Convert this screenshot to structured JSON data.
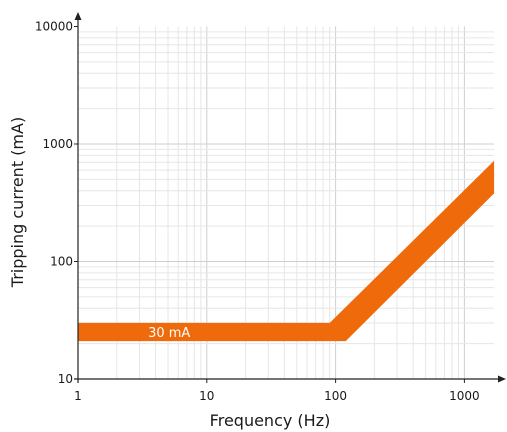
{
  "chart_data": {
    "type": "area",
    "x_scale": "log",
    "y_scale": "log",
    "xlim": [
      1,
      1700
    ],
    "ylim": [
      10,
      10000
    ],
    "xlabel": "Frequency (Hz)",
    "ylabel": "Tripping current (mA)",
    "x_ticks": [
      {
        "value": 1,
        "label": "1"
      },
      {
        "value": 10,
        "label": "10"
      },
      {
        "value": 100,
        "label": "100"
      },
      {
        "value": 1000,
        "label": "1000"
      }
    ],
    "y_ticks": [
      {
        "value": 10,
        "label": "10"
      },
      {
        "value": 100,
        "label": "100"
      },
      {
        "value": 1000,
        "label": "1000"
      },
      {
        "value": 10000,
        "label": "10000"
      }
    ],
    "grid": true,
    "band": {
      "color": "#ee6a0a",
      "label": "30 mA",
      "label_x": 3.5,
      "label_y": 25,
      "upper": [
        [
          1,
          30
        ],
        [
          90,
          30
        ],
        [
          1700,
          720
        ]
      ],
      "lower": [
        [
          1,
          21
        ],
        [
          120,
          21
        ],
        [
          1700,
          380
        ]
      ]
    }
  }
}
